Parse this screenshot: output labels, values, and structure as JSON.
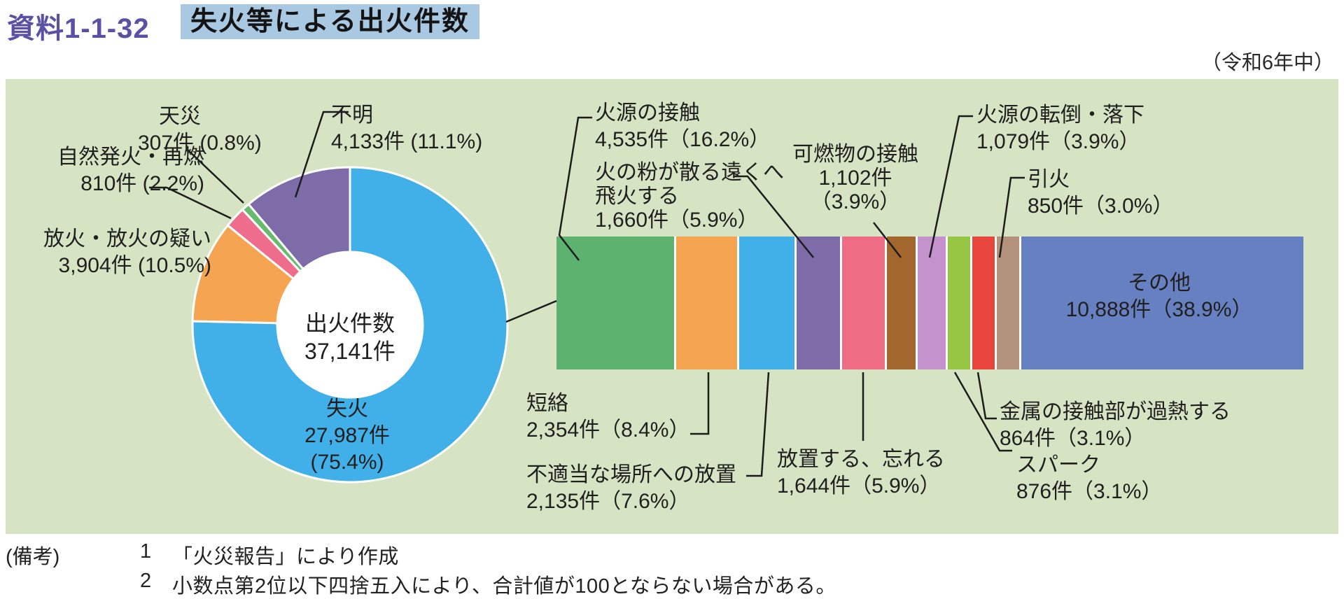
{
  "header": {
    "doc_label": "資料1-1-32",
    "title": "失火等による出火件数",
    "period": "（令和6年中）"
  },
  "chart_data": [
    {
      "type": "pie",
      "shape": "donut",
      "center_label": {
        "line1": "出火件数",
        "line2": "37,141件"
      },
      "total_value": 37141,
      "unit": "件",
      "start_angle_deg": 0,
      "direction": "clockwise",
      "slices": [
        {
          "label": "失火",
          "value": 27987,
          "pct": 75.4,
          "color": "#42b0e8"
        },
        {
          "label": "放火・放火の疑い",
          "value": 3904,
          "pct": 10.5,
          "color": "#f5a452"
        },
        {
          "label": "自然発火・再燃",
          "value": 810,
          "pct": 2.2,
          "color": "#ee6d8c"
        },
        {
          "label": "天災",
          "value": 307,
          "pct": 0.8,
          "color": "#68ba6e"
        },
        {
          "label": "不明",
          "value": 4133,
          "pct": 11.1,
          "color": "#7d6ca8"
        }
      ]
    },
    {
      "type": "bar",
      "stacked": true,
      "orientation": "horizontal",
      "represents": "失火の内訳",
      "total_value": 27987,
      "unit": "件",
      "segments": [
        {
          "label": "火源の接触",
          "value": 4535,
          "pct": 16.2,
          "color": "#5cb26e"
        },
        {
          "label": "短絡",
          "value": 2354,
          "pct": 8.4,
          "color": "#f5a452"
        },
        {
          "label": "不適当な場所への放置",
          "value": 2135,
          "pct": 7.6,
          "color": "#42b0e8"
        },
        {
          "label": "火の粉が散る遠くへ飛火する",
          "value": 1660,
          "pct": 5.9,
          "color": "#7d6ca8"
        },
        {
          "label": "放置する、忘れる",
          "value": 1644,
          "pct": 5.9,
          "color": "#ee6d84"
        },
        {
          "label": "可燃物の接触",
          "value": 1102,
          "pct": 3.9,
          "color": "#a3662d"
        },
        {
          "label": "火源の転倒・落下",
          "value": 1079,
          "pct": 3.9,
          "color": "#c492cd"
        },
        {
          "label": "スパーク",
          "value": 876,
          "pct": 3.1,
          "color": "#97c645"
        },
        {
          "label": "金属の接触部が過熱する",
          "value": 864,
          "pct": 3.1,
          "color": "#e8463c"
        },
        {
          "label": "引火",
          "value": 850,
          "pct": 3.0,
          "color": "#b4917a"
        },
        {
          "label": "その他",
          "value": 10888,
          "pct": 38.9,
          "color": "#6780c2"
        }
      ]
    }
  ],
  "labels": [
    {
      "id": "fumei",
      "lines": [
        "不明",
        "4,133件 (11.1%)"
      ]
    },
    {
      "id": "tensai",
      "lines": [
        "天災",
        "307件 (0.8%)"
      ]
    },
    {
      "id": "shizen",
      "lines": [
        "自然発火・再燃",
        "810件 (2.2%)"
      ]
    },
    {
      "id": "houka",
      "lines": [
        "放火・放火の疑い",
        "3,904件 (10.5%)"
      ]
    },
    {
      "id": "centerlbl",
      "lines": [
        "出火件数",
        "37,141件"
      ]
    },
    {
      "id": "shikka",
      "lines": [
        "失火",
        "27,987件",
        "(75.4%)"
      ]
    },
    {
      "id": "kagen",
      "lines": [
        "火源の接触",
        "4,535件（16.2%）"
      ]
    },
    {
      "id": "hinoko",
      "lines": [
        "火の粉が散る遠くへ",
        "飛火する",
        "1,660件（5.9%）"
      ]
    },
    {
      "id": "kanen",
      "lines": [
        "可燃物の接触",
        "1,102件",
        "（3.9%）"
      ]
    },
    {
      "id": "tentou",
      "lines": [
        "火源の転倒・落下",
        "1,079件（3.9%）"
      ]
    },
    {
      "id": "inka",
      "lines": [
        "引火",
        "850件（3.0%）"
      ]
    },
    {
      "id": "sonota",
      "lines": [
        "その他",
        "10,888件（38.9%）"
      ]
    },
    {
      "id": "tanraku",
      "lines": [
        "短絡",
        "2,354件（8.4%）"
      ]
    },
    {
      "id": "futekitou",
      "lines": [
        "不適当な場所への放置",
        "2,135件（7.6%）"
      ]
    },
    {
      "id": "houchi",
      "lines": [
        "放置する、忘れる",
        "1,644件（5.9%）"
      ]
    },
    {
      "id": "spark",
      "lines": [
        "スパーク",
        "876件（3.1%）"
      ]
    },
    {
      "id": "kinzoku",
      "lines": [
        "金属の接触部が過熱する",
        "864件（3.1%）"
      ]
    }
  ],
  "notes": {
    "mark": "(備考)",
    "items": [
      {
        "num": "1",
        "text": "「火災報告」により作成"
      },
      {
        "num": "2",
        "text": "小数点第2位以下四捨五入により、合計値が100とならない場合がある。"
      }
    ]
  },
  "colors": {
    "panel_bg": "#d6e4c3",
    "doc_label": "#5a51a5",
    "title_highlight_bg": "#a9c8e2",
    "leader_line": "#1c1c1c",
    "slice_divider": "#ffffff"
  }
}
